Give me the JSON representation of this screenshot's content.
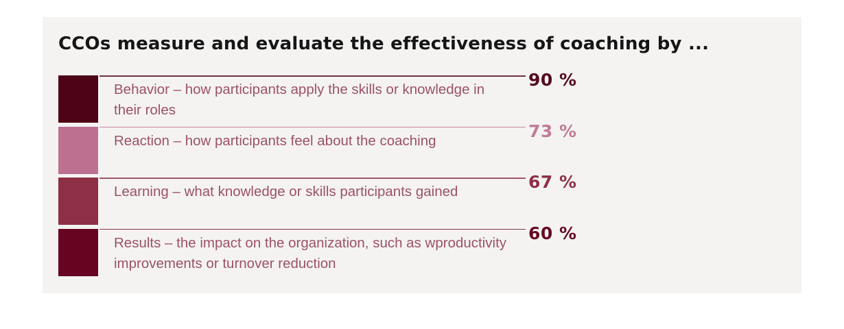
{
  "title": "CCOs measure and evaluate the effectiveness of coaching by ...",
  "colors": {
    "page_bg": "#FFFFFF",
    "panel_bg": "#F4F3F2",
    "title_text": "#161616",
    "body_text": "#9C5168"
  },
  "rows": [
    {
      "label": "Behavior – how participants apply the skills or knowledge in their roles",
      "value_label": "90 %",
      "accent": "#4E0317",
      "value_color": "#540B22"
    },
    {
      "label": "Reaction – how participants feel about the coaching",
      "value_label": "73 %",
      "accent": "#BD7090",
      "value_color": "#C07C97"
    },
    {
      "label": "Learning – what knowledge or skills participants gained",
      "value_label": "67 %",
      "accent": "#8E2F45",
      "value_color": "#8E3048"
    },
    {
      "label": "Results – the impact on the organization, such as wproductivity improvements or turnover reduction",
      "value_label": "60 %",
      "accent": "#660421",
      "value_color": "#660A24"
    }
  ],
  "chart_data": {
    "type": "bar",
    "title": "CCOs measure and evaluate the effectiveness of coaching by ...",
    "categories": [
      "Behavior – how participants apply the skills or knowledge in their roles",
      "Reaction – how participants feel about the coaching",
      "Learning – what knowledge or skills participants gained",
      "Results – the impact on the organization, such as wproductivity improvements or turnover reduction"
    ],
    "values": [
      90,
      73,
      67,
      60
    ],
    "unit": "%",
    "xlabel": "",
    "ylabel": "",
    "legend": false,
    "grid": false,
    "orientation": "list-with-percent-labels",
    "series_colors": [
      "#4E0317",
      "#BD7090",
      "#8E2F45",
      "#660421"
    ]
  }
}
